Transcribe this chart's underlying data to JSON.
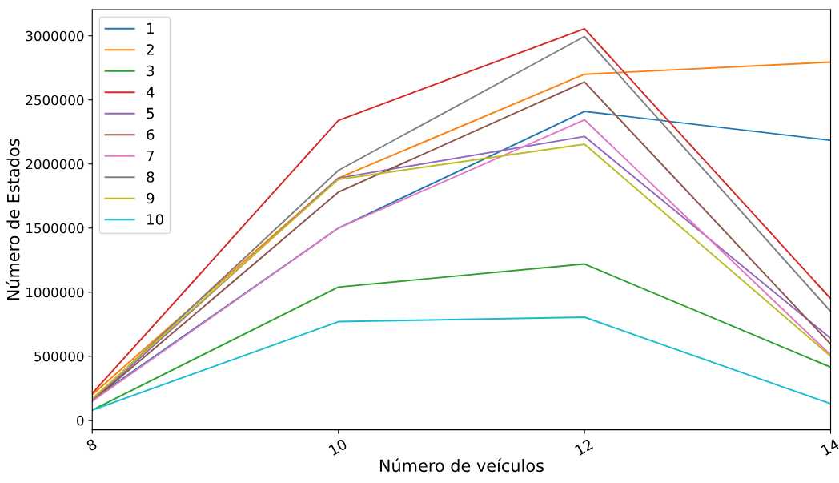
{
  "chart_data": {
    "type": "line",
    "xlabel": "Número de veículos",
    "ylabel": "Número de Estados",
    "x": [
      8,
      10,
      12,
      14
    ],
    "xlim": [
      8,
      14
    ],
    "xticks": [
      8,
      10,
      12,
      14
    ],
    "ylim": [
      -74000,
      3204000
    ],
    "yticks": [
      0,
      500000,
      1000000,
      1500000,
      2000000,
      2500000,
      3000000
    ],
    "legend": "top left",
    "grid": false,
    "series": [
      {
        "name": "1",
        "color": "#1f77b4",
        "values": [
          160000,
          1500000,
          2410000,
          2185000
        ]
      },
      {
        "name": "2",
        "color": "#ff7f0e",
        "values": [
          200000,
          1890000,
          2700000,
          2795000
        ]
      },
      {
        "name": "3",
        "color": "#2ca02c",
        "values": [
          80000,
          1040000,
          1220000,
          415000
        ]
      },
      {
        "name": "4",
        "color": "#d62728",
        "values": [
          210000,
          2340000,
          3055000,
          950000
        ]
      },
      {
        "name": "5",
        "color": "#9467bd",
        "values": [
          150000,
          1890000,
          2215000,
          640000
        ]
      },
      {
        "name": "6",
        "color": "#8c564b",
        "values": [
          150000,
          1780000,
          2640000,
          595000
        ]
      },
      {
        "name": "7",
        "color": "#e377c2",
        "values": [
          150000,
          1500000,
          2345000,
          510000
        ]
      },
      {
        "name": "8",
        "color": "#7f7f7f",
        "values": [
          160000,
          1950000,
          2995000,
          850000
        ]
      },
      {
        "name": "9",
        "color": "#bcbd22",
        "values": [
          170000,
          1880000,
          2155000,
          500000
        ]
      },
      {
        "name": "10",
        "color": "#17becf",
        "values": [
          80000,
          770000,
          805000,
          130000
        ]
      }
    ]
  }
}
